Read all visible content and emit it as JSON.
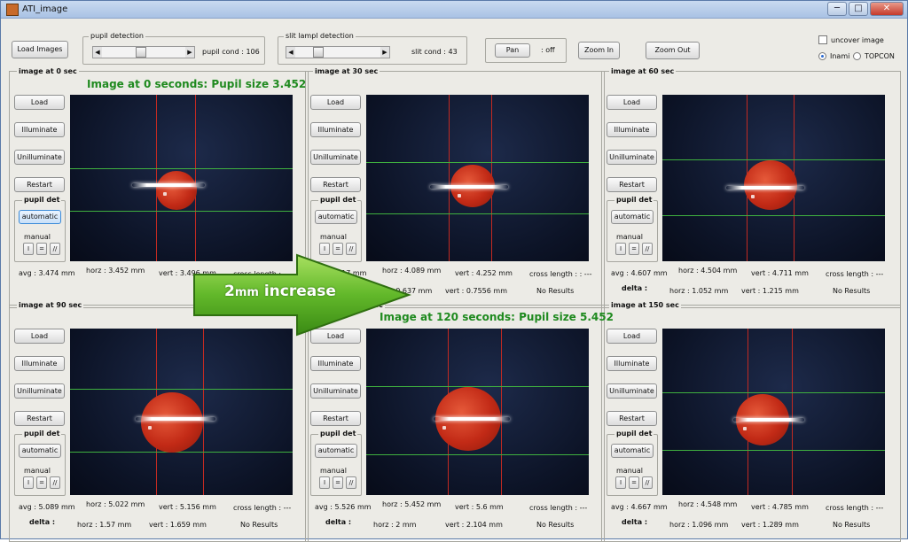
{
  "window": {
    "title": "ATI_image",
    "buttons": {
      "minimize": "─",
      "maximize": "□",
      "close": "✕"
    }
  },
  "toolbar": {
    "load_images": "Load Images",
    "pupil_detection": {
      "label": "pupil detection",
      "cond_label": "pupil cond",
      "cond_value": "106"
    },
    "slit_detection": {
      "label": "slit lampl detection",
      "cond_label": "slit cond",
      "cond_value": "43"
    },
    "pan": {
      "label": "Pan",
      "state": ": off"
    },
    "zoom_in": "Zoom In",
    "zoom_out": "Zoom Out",
    "uncover_image": "uncover image",
    "source_options": [
      "Inami",
      "TOPCON"
    ],
    "source_selected": "Inami"
  },
  "overlay": {
    "caption_top": "Image at 0 seconds: Pupil size 3.452",
    "caption_mid": "Image at 120 seconds: Pupil size 5.452",
    "arrow_text_big": "2",
    "arrow_text_unit": "mm",
    "arrow_text_rest": " increase"
  },
  "panel_controls": {
    "load": "Load",
    "illuminate": "Illuminate",
    "unilluminate": "Unilluminate",
    "restart": "Restart",
    "pupil_det": "pupil det",
    "automatic": "automatic",
    "manual": "manual",
    "tool_icons": [
      "I",
      "=",
      "//"
    ]
  },
  "panels": [
    {
      "title": "image at 0 sec",
      "avg": "avg : 3.474 mm",
      "horz": "horz : 3.452 mm",
      "vert": "vert : 3.496 mm",
      "cross": "cross length : ---",
      "delta_label": "",
      "dhorz": "",
      "dvert": "",
      "result": ""
    },
    {
      "title": "image at 30 sec",
      "avg": "avg : 4.17 mm",
      "horz": "horz : 4.089 mm",
      "vert": "vert : 4.252 mm",
      "cross": "cross length : : ---",
      "delta_label": "",
      "dhorz": "horz : 0.637 mm",
      "dvert": "vert : 0.7556 mm",
      "result": "No Results"
    },
    {
      "title": "image at 60 sec",
      "avg": "avg : 4.607 mm",
      "horz": "horz : 4.504 mm",
      "vert": "vert : 4.711 mm",
      "cross": "cross length : ---",
      "delta_label": "delta :",
      "dhorz": "horz : 1.052 mm",
      "dvert": "vert : 1.215 mm",
      "result": "No Results"
    },
    {
      "title": "image at 90 sec",
      "avg": "avg : 5.089 mm",
      "horz": "horz : 5.022 mm",
      "vert": "vert : 5.156 mm",
      "cross": "cross length : ---",
      "delta_label": "delta :",
      "dhorz": "horz : 1.57 mm",
      "dvert": "vert : 1.659 mm",
      "result": "No Results"
    },
    {
      "title": "image at 120 sec",
      "avg": "avg : 5.526 mm",
      "horz": "horz : 5.452 mm",
      "vert": "vert : 5.6 mm",
      "cross": "cross length : ---",
      "delta_label": "delta :",
      "dhorz": "horz : 2 mm",
      "dvert": "vert : 2.104 mm",
      "result": "No Results"
    },
    {
      "title": "image at 150 sec",
      "avg": "avg : 4.667 mm",
      "horz": "horz : 4.548 mm",
      "vert": "vert : 4.785 mm",
      "cross": "cross length : ---",
      "delta_label": "delta :",
      "dhorz": "horz : 1.096 mm",
      "dvert": "vert : 1.289 mm",
      "result": "No Results"
    }
  ]
}
